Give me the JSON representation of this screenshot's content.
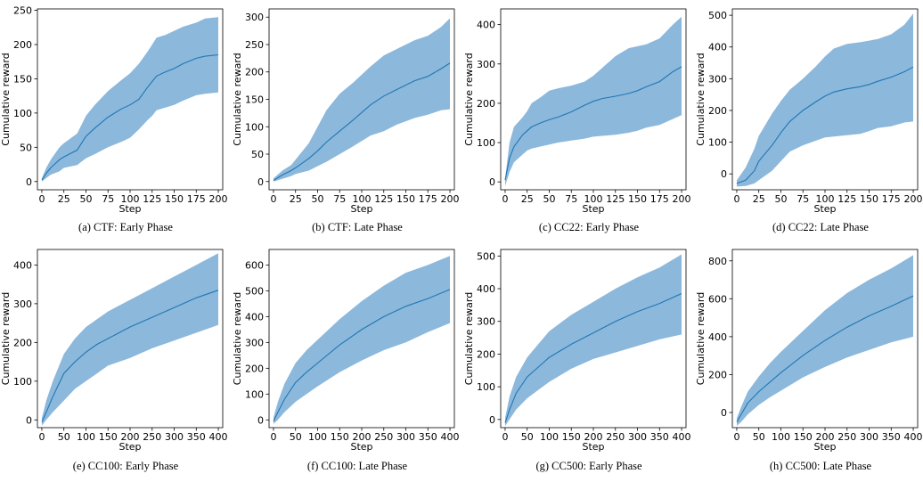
{
  "chart_data": [
    {
      "type": "line",
      "caption": "(a) CTF: Early Phase",
      "xlabel": "Step",
      "ylabel": "Cumulative reward",
      "xlim": [
        -5,
        205
      ],
      "ylim": [
        -12,
        252
      ],
      "xticks": [
        0,
        25,
        50,
        75,
        100,
        125,
        150,
        175,
        200
      ],
      "yticks": [
        0,
        50,
        100,
        150,
        200,
        250
      ],
      "grid": false,
      "series": [
        {
          "x": [
            0,
            5,
            10,
            20,
            25,
            40,
            50,
            60,
            75,
            90,
            100,
            110,
            120,
            125,
            130,
            140,
            150,
            160,
            175,
            185,
            200
          ],
          "mean": [
            2,
            12,
            20,
            32,
            36,
            46,
            66,
            78,
            94,
            106,
            112,
            120,
            138,
            146,
            154,
            160,
            165,
            172,
            180,
            183,
            185
          ],
          "upper": [
            5,
            20,
            32,
            50,
            56,
            70,
            96,
            112,
            132,
            148,
            158,
            172,
            190,
            200,
            210,
            214,
            220,
            226,
            232,
            238,
            240
          ],
          "lower": [
            0,
            5,
            10,
            15,
            20,
            24,
            34,
            40,
            50,
            58,
            64,
            76,
            90,
            96,
            104,
            108,
            112,
            118,
            126,
            128,
            130
          ]
        }
      ]
    },
    {
      "type": "line",
      "caption": "(b) CTF: Late Phase",
      "xlabel": "Step",
      "ylabel": "Cumulative reward",
      "xlim": [
        -5,
        205
      ],
      "ylim": [
        -15,
        315
      ],
      "xticks": [
        0,
        25,
        50,
        75,
        100,
        125,
        150,
        175,
        200
      ],
      "yticks": [
        0,
        50,
        100,
        150,
        200,
        250,
        300
      ],
      "grid": false,
      "series": [
        {
          "x": [
            0,
            10,
            20,
            25,
            40,
            50,
            60,
            75,
            90,
            100,
            110,
            125,
            140,
            150,
            160,
            175,
            190,
            200
          ],
          "mean": [
            2,
            12,
            20,
            25,
            42,
            56,
            72,
            92,
            112,
            126,
            140,
            156,
            168,
            176,
            184,
            192,
            206,
            216
          ],
          "upper": [
            6,
            20,
            30,
            40,
            70,
            100,
            130,
            160,
            180,
            195,
            210,
            230,
            242,
            250,
            258,
            266,
            282,
            298
          ],
          "lower": [
            0,
            5,
            10,
            14,
            20,
            28,
            36,
            50,
            64,
            74,
            84,
            92,
            104,
            110,
            116,
            122,
            130,
            132
          ]
        }
      ]
    },
    {
      "type": "line",
      "caption": "(c) CC22: Early Phase",
      "xlabel": "Step",
      "ylabel": "Cumulative reward",
      "xlim": [
        -5,
        205
      ],
      "ylim": [
        -20,
        440
      ],
      "xticks": [
        0,
        25,
        50,
        75,
        100,
        125,
        150,
        175,
        200
      ],
      "yticks": [
        0,
        100,
        200,
        300,
        400
      ],
      "grid": false,
      "series": [
        {
          "x": [
            0,
            5,
            10,
            20,
            25,
            30,
            40,
            50,
            60,
            75,
            90,
            100,
            110,
            125,
            140,
            150,
            160,
            175,
            190,
            200
          ],
          "mean": [
            5,
            60,
            90,
            120,
            130,
            140,
            150,
            158,
            165,
            178,
            195,
            205,
            212,
            218,
            225,
            232,
            242,
            255,
            280,
            293
          ],
          "upper": [
            10,
            100,
            140,
            165,
            180,
            200,
            215,
            232,
            238,
            245,
            255,
            270,
            290,
            320,
            340,
            345,
            350,
            365,
            400,
            420
          ],
          "lower": [
            -10,
            25,
            50,
            70,
            80,
            85,
            90,
            95,
            100,
            105,
            110,
            115,
            117,
            120,
            125,
            130,
            138,
            145,
            160,
            170
          ]
        }
      ]
    },
    {
      "type": "line",
      "caption": "(d) CC22: Late Phase",
      "xlabel": "Step",
      "ylabel": "Cumulative reward",
      "xlim": [
        -5,
        205
      ],
      "ylim": [
        -50,
        520
      ],
      "xticks": [
        0,
        25,
        50,
        75,
        100,
        125,
        150,
        175,
        200
      ],
      "yticks": [
        0,
        100,
        200,
        300,
        400,
        500
      ],
      "grid": false,
      "series": [
        {
          "x": [
            0,
            10,
            20,
            25,
            40,
            50,
            60,
            75,
            90,
            100,
            110,
            125,
            140,
            150,
            160,
            175,
            190,
            200
          ],
          "mean": [
            -30,
            -20,
            10,
            40,
            90,
            130,
            165,
            200,
            228,
            245,
            258,
            268,
            275,
            282,
            292,
            305,
            322,
            337
          ],
          "upper": [
            -20,
            20,
            80,
            120,
            190,
            230,
            265,
            300,
            340,
            370,
            395,
            410,
            415,
            420,
            425,
            440,
            470,
            505
          ],
          "lower": [
            -40,
            -38,
            -30,
            -20,
            10,
            40,
            70,
            90,
            105,
            115,
            118,
            122,
            126,
            135,
            145,
            150,
            162,
            165
          ]
        }
      ]
    },
    {
      "type": "line",
      "caption": "(e) CC100: Early Phase",
      "xlabel": "Step",
      "ylabel": "Cumulative reward",
      "xlim": [
        -10,
        410
      ],
      "ylim": [
        -20,
        440
      ],
      "xticks": [
        0,
        50,
        100,
        150,
        200,
        250,
        300,
        350,
        400
      ],
      "yticks": [
        0,
        100,
        200,
        300,
        400
      ],
      "grid": false,
      "series": [
        {
          "x": [
            0,
            10,
            25,
            50,
            75,
            100,
            125,
            150,
            200,
            250,
            300,
            350,
            400
          ],
          "mean": [
            -5,
            20,
            60,
            120,
            150,
            175,
            195,
            210,
            240,
            265,
            290,
            315,
            335
          ],
          "upper": [
            5,
            50,
            100,
            170,
            210,
            240,
            260,
            280,
            310,
            340,
            370,
            400,
            430
          ],
          "lower": [
            -15,
            0,
            20,
            50,
            80,
            100,
            120,
            140,
            160,
            185,
            205,
            225,
            245
          ]
        }
      ]
    },
    {
      "type": "line",
      "caption": "(f) CC100: Late Phase",
      "xlabel": "Step",
      "ylabel": "Cumulative reward",
      "xlim": [
        -10,
        410
      ],
      "ylim": [
        -30,
        660
      ],
      "xticks": [
        0,
        50,
        100,
        150,
        200,
        250,
        300,
        350,
        400
      ],
      "yticks": [
        0,
        100,
        200,
        300,
        400,
        500,
        600
      ],
      "grid": false,
      "series": [
        {
          "x": [
            0,
            10,
            25,
            50,
            75,
            100,
            150,
            200,
            250,
            300,
            350,
            400
          ],
          "mean": [
            -5,
            30,
            80,
            145,
            185,
            220,
            290,
            350,
            400,
            440,
            470,
            505
          ],
          "upper": [
            10,
            70,
            140,
            220,
            270,
            310,
            390,
            460,
            520,
            570,
            600,
            635
          ],
          "lower": [
            -15,
            0,
            30,
            70,
            100,
            130,
            185,
            230,
            270,
            300,
            340,
            375
          ]
        }
      ]
    },
    {
      "type": "line",
      "caption": "(g) CC500: Early Phase",
      "xlabel": "Step",
      "ylabel": "Cumulative reward",
      "xlim": [
        -10,
        410
      ],
      "ylim": [
        -25,
        520
      ],
      "xticks": [
        0,
        50,
        100,
        150,
        200,
        250,
        300,
        350,
        400
      ],
      "yticks": [
        0,
        100,
        200,
        300,
        400,
        500
      ],
      "grid": false,
      "series": [
        {
          "x": [
            0,
            10,
            25,
            50,
            75,
            100,
            150,
            200,
            250,
            300,
            350,
            400
          ],
          "mean": [
            -10,
            30,
            80,
            130,
            160,
            190,
            230,
            265,
            300,
            330,
            355,
            385
          ],
          "upper": [
            5,
            70,
            130,
            190,
            230,
            270,
            320,
            360,
            400,
            435,
            465,
            505
          ],
          "lower": [
            -20,
            0,
            30,
            65,
            90,
            115,
            155,
            185,
            205,
            225,
            245,
            260
          ]
        }
      ]
    },
    {
      "type": "line",
      "caption": "(h) CC500: Late Phase",
      "xlabel": "Step",
      "ylabel": "Cumulative reward",
      "xlim": [
        -10,
        410
      ],
      "ylim": [
        -80,
        860
      ],
      "xticks": [
        0,
        50,
        100,
        150,
        200,
        250,
        300,
        350,
        400
      ],
      "yticks": [
        0,
        200,
        400,
        600,
        800
      ],
      "grid": false,
      "series": [
        {
          "x": [
            0,
            10,
            25,
            50,
            75,
            100,
            150,
            200,
            250,
            300,
            350,
            400
          ],
          "mean": [
            -50,
            -10,
            50,
            110,
            160,
            210,
            300,
            380,
            450,
            510,
            560,
            615
          ],
          "upper": [
            -30,
            30,
            110,
            190,
            260,
            320,
            430,
            540,
            630,
            700,
            760,
            830
          ],
          "lower": [
            -70,
            -50,
            -10,
            40,
            80,
            115,
            185,
            240,
            290,
            330,
            370,
            400
          ]
        }
      ]
    }
  ]
}
